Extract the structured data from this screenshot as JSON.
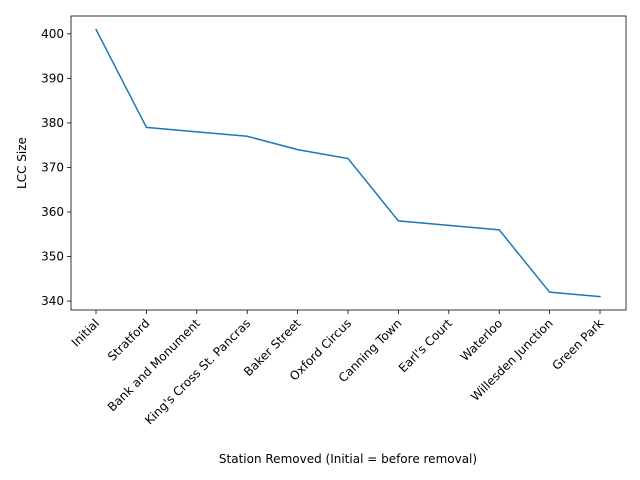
{
  "chart_data": {
    "type": "line",
    "title": "",
    "xlabel": "Station Removed (Initial = before removal)",
    "ylabel": "LCC Size",
    "categories": [
      "Initial",
      "Stratford",
      "Bank and Monument",
      "King's Cross St. Pancras",
      "Baker Street",
      "Oxford Circus",
      "Canning Town",
      "Earl's Court",
      "Waterloo",
      "Willesden Junction",
      "Green Park"
    ],
    "series": [
      {
        "values": [
          401,
          379,
          378,
          377,
          374,
          372,
          358,
          357,
          356,
          342,
          341
        ],
        "color": "#1f77b4"
      }
    ],
    "yticks": [
      340,
      350,
      360,
      370,
      380,
      390,
      400
    ],
    "ylim": [
      338,
      404
    ],
    "grid": false,
    "legend": "none"
  }
}
